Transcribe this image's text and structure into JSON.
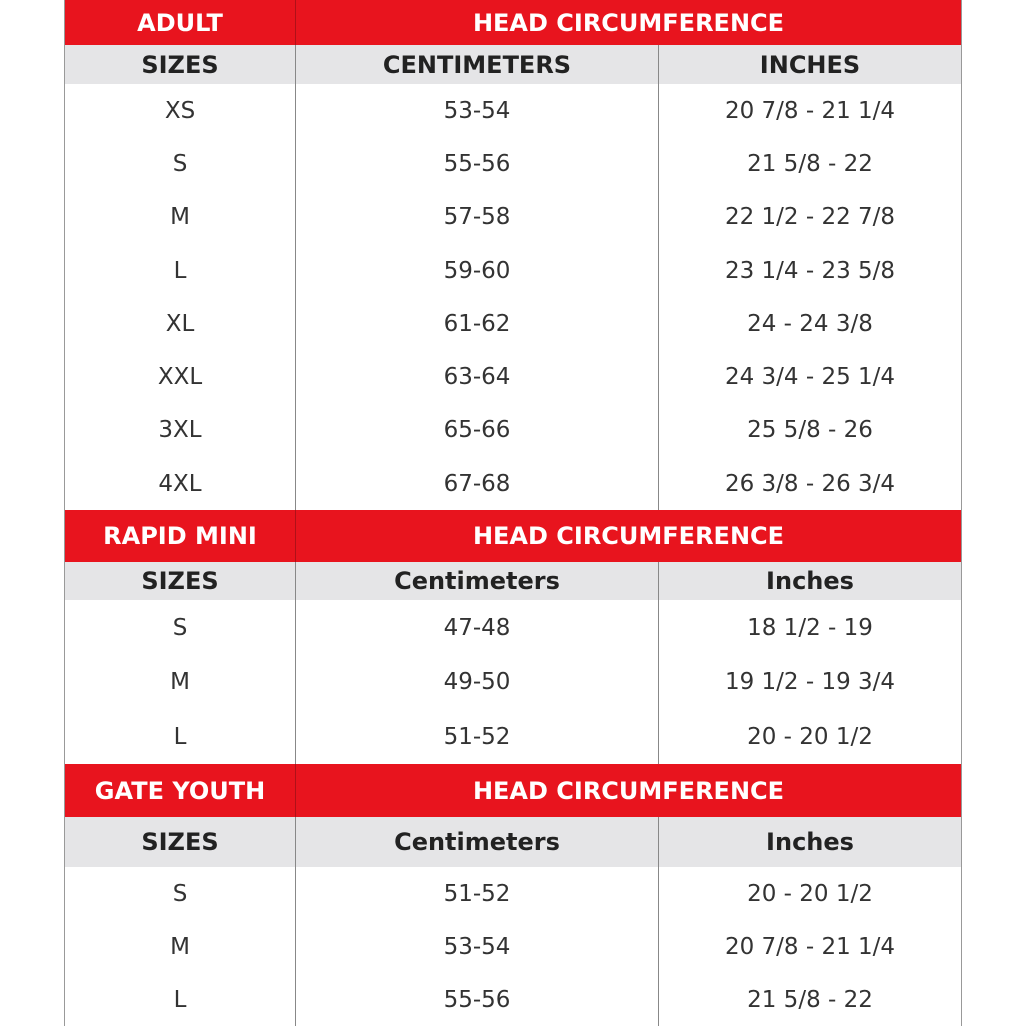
{
  "colors": {
    "header_red": "#e8141e",
    "subheader_gray": "#e5e5e7"
  },
  "sections": [
    {
      "title": "ADULT",
      "group_header": "HEAD CIRCUMFERENCE",
      "col_sizes": "SIZES",
      "col_cm": "CENTIMETERS",
      "col_in": "INCHES",
      "rows": [
        [
          "XS",
          "53-54",
          "20 7/8 - 21 1/4"
        ],
        [
          "S",
          "55-56",
          "21 5/8 - 22"
        ],
        [
          "M",
          "57-58",
          "22 1/2 - 22 7/8"
        ],
        [
          "L",
          "59-60",
          "23 1/4 - 23 5/8"
        ],
        [
          "XL",
          "61-62",
          "24 - 24 3/8"
        ],
        [
          "XXL",
          "63-64",
          "24 3/4 - 25 1/4"
        ],
        [
          "3XL",
          "65-66",
          "25 5/8 - 26"
        ],
        [
          "4XL",
          "67-68",
          "26 3/8 - 26 3/4"
        ]
      ]
    },
    {
      "title": "RAPID MINI",
      "group_header": "HEAD CIRCUMFERENCE",
      "col_sizes": "SIZES",
      "col_cm": "Centimeters",
      "col_in": "Inches",
      "rows": [
        [
          "S",
          "47-48",
          "18 1/2 - 19"
        ],
        [
          "M",
          "49-50",
          "19 1/2 - 19 3/4"
        ],
        [
          "L",
          "51-52",
          "20 - 20 1/2"
        ]
      ]
    },
    {
      "title": "GATE YOUTH",
      "group_header": "HEAD CIRCUMFERENCE",
      "col_sizes": "SIZES",
      "col_cm": "Centimeters",
      "col_in": "Inches",
      "rows": [
        [
          "S",
          "51-52",
          "20 - 20 1/2"
        ],
        [
          "M",
          "53-54",
          "20 7/8 - 21 1/4"
        ],
        [
          "L",
          "55-56",
          "21 5/8 - 22"
        ]
      ]
    }
  ]
}
